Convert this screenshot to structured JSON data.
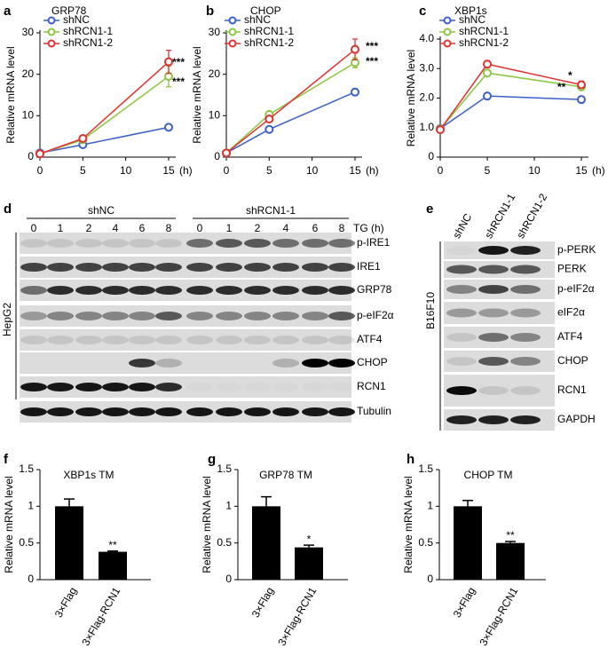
{
  "chart_data": [
    {
      "type": "line",
      "panel": "a",
      "title": "GRP78",
      "ylabel": "Relative mRNA level",
      "xlabel": "(h)",
      "x": [
        0,
        5,
        15
      ],
      "xlim": [
        0,
        15
      ],
      "xticks": [
        0,
        5,
        10,
        15
      ],
      "ylim": [
        0,
        30
      ],
      "yticks": [
        0,
        10,
        20,
        30
      ],
      "series": [
        {
          "name": "shNC",
          "color": "#3b5fc9",
          "values": [
            1,
            3,
            7.2
          ],
          "errors": [
            0.2,
            0.3,
            0.4
          ]
        },
        {
          "name": "shRCN1-1",
          "color": "#8cc63f",
          "values": [
            0.8,
            4.2,
            19.5
          ],
          "errors": [
            0.2,
            0.4,
            2.5
          ]
        },
        {
          "name": "shRCN1-2",
          "color": "#e0312f",
          "values": [
            0.8,
            4.5,
            23
          ],
          "errors": [
            0.2,
            0.4,
            2.8
          ]
        }
      ],
      "annotations": [
        "***",
        "***"
      ]
    },
    {
      "type": "line",
      "panel": "b",
      "title": "CHOP",
      "ylabel": "Relative mRNA level",
      "xlabel": "(h)",
      "x": [
        0,
        5,
        15
      ],
      "xlim": [
        0,
        15
      ],
      "xticks": [
        0,
        5,
        10,
        15
      ],
      "ylim": [
        0,
        30
      ],
      "yticks": [
        0,
        10,
        20,
        30
      ],
      "series": [
        {
          "name": "shNC",
          "color": "#3b5fc9",
          "values": [
            1,
            6.7,
            15.7
          ],
          "errors": [
            0.2,
            0.3,
            0.8
          ]
        },
        {
          "name": "shRCN1-1",
          "color": "#8cc63f",
          "values": [
            1,
            10.3,
            22.8
          ],
          "errors": [
            0.2,
            0.4,
            1.2
          ]
        },
        {
          "name": "shRCN1-2",
          "color": "#e0312f",
          "values": [
            1,
            9.2,
            26
          ],
          "errors": [
            0.2,
            0.4,
            2.5
          ]
        }
      ],
      "annotations": [
        "***",
        "***"
      ]
    },
    {
      "type": "line",
      "panel": "c",
      "title": "XBP1s",
      "ylabel": "Relative mRNA level",
      "xlabel": "(h)",
      "x": [
        0,
        5,
        15
      ],
      "xlim": [
        0,
        15
      ],
      "xticks": [
        0,
        5,
        10,
        15
      ],
      "ylim": [
        0,
        4
      ],
      "yticks": [
        0,
        {
          "value": 1,
          "label": "1.0"
        },
        {
          "value": 2,
          "label": "2.0"
        },
        {
          "value": 3,
          "label": "3.0"
        },
        {
          "value": 4,
          "label": "4.0"
        }
      ],
      "series": [
        {
          "name": "shNC",
          "color": "#3b5fc9",
          "values": [
            0.97,
            2.07,
            1.95
          ],
          "errors": [
            0.03,
            0.03,
            0.04
          ]
        },
        {
          "name": "shRCN1-1",
          "color": "#8cc63f",
          "values": [
            0.95,
            2.85,
            2.38
          ],
          "errors": [
            0.03,
            0.05,
            0.06
          ]
        },
        {
          "name": "shRCN1-2",
          "color": "#e0312f",
          "values": [
            0.93,
            3.15,
            2.45
          ],
          "errors": [
            0.03,
            0.12,
            0.12
          ]
        }
      ],
      "annotations": [
        "*",
        "**"
      ]
    },
    {
      "type": "bar",
      "panel": "f",
      "title": "XBP1s TM",
      "ylabel": "Relative mRNA level",
      "color": "#000000",
      "categories": [
        "3×Flag",
        "3×Flag-RCN1"
      ],
      "values": [
        1.0,
        0.38
      ],
      "errors": [
        0.1,
        0.01
      ],
      "ylim": [
        0,
        1.5
      ],
      "yticks": [
        0,
        0.5,
        1,
        1.5
      ],
      "annotations": [
        "**"
      ]
    },
    {
      "type": "bar",
      "panel": "g",
      "title": "GRP78 TM",
      "ylabel": "Relative mRNA level",
      "color": "#000000",
      "categories": [
        "3×Flag",
        "3×Flag-RCN1"
      ],
      "values": [
        1.0,
        0.44
      ],
      "errors": [
        0.13,
        0.03
      ],
      "ylim": [
        0,
        1.5
      ],
      "yticks": [
        0,
        0.5,
        1,
        1.5
      ],
      "annotations": [
        "*"
      ]
    },
    {
      "type": "bar",
      "panel": "h",
      "title": "CHOP TM",
      "ylabel": "Relative mRNA level",
      "color": "#000000",
      "categories": [
        "3×Flag",
        "3×Flag-RCN1"
      ],
      "values": [
        1.0,
        0.5
      ],
      "errors": [
        0.08,
        0.02
      ],
      "ylim": [
        0,
        1.5
      ],
      "yticks": [
        0,
        0.5,
        1,
        1.5
      ],
      "annotations": [
        "**"
      ]
    }
  ],
  "blots": [
    {
      "panel": "d",
      "cell_line": "HepG2",
      "treatment": "TG (h)",
      "groups": [
        {
          "label": "shNC",
          "lanes": [
            "0",
            "1",
            "2",
            "4",
            "6",
            "8"
          ]
        },
        {
          "label": "shRCN1-1",
          "lanes": [
            "0",
            "1",
            "2",
            "4",
            "6",
            "8"
          ]
        }
      ],
      "rows": [
        "p-IRE1",
        "IRE1",
        "GRP78",
        "p-eIF2α",
        "ATF4",
        "CHOP",
        "RCN1",
        "Tubulin"
      ]
    },
    {
      "panel": "e",
      "cell_line": "B16F10",
      "lanes": [
        "shNC",
        "shRCN1-1",
        "shRCN1-2"
      ],
      "rows": [
        "p-PERK",
        "PERK",
        "p-eIF2α",
        "eIF2α",
        "ATF4",
        "CHOP",
        "RCN1",
        "GAPDH"
      ]
    }
  ]
}
